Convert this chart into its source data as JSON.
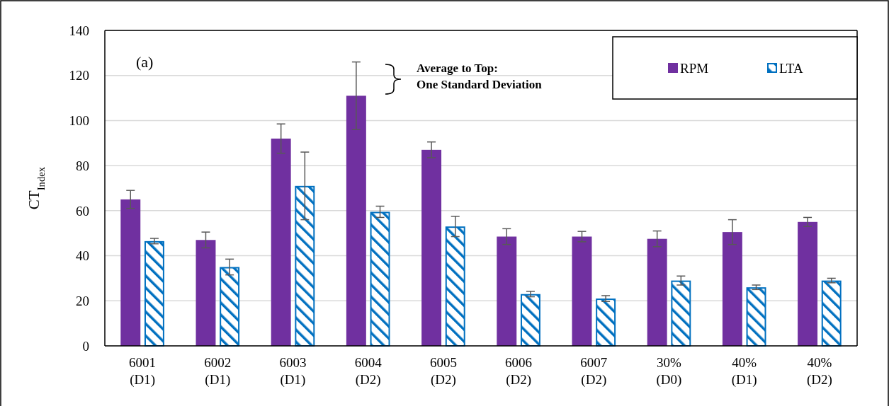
{
  "chart_data": {
    "type": "bar",
    "ylabel": "CT$_{Index}$",
    "categories": [
      "6001\n(D1)",
      "6002\n(D1)",
      "6003\n(D1)",
      "6004\n(D2)",
      "6005\n(D2)",
      "6006\n(D2)",
      "6007\n(D2)",
      "30%\n(D0)",
      "40%\n(D1)",
      "40%\n(D2)"
    ],
    "series": [
      {
        "name": "RPM",
        "color": "#7030a0",
        "values": [
          65,
          47,
          92,
          111,
          87,
          48.5,
          48.5,
          47.5,
          50.5,
          55
        ],
        "errors": [
          4,
          3.5,
          6.5,
          15,
          3.5,
          3.5,
          2.3,
          3.5,
          5.5,
          2
        ]
      },
      {
        "name": "LTA",
        "color": "#0070c0",
        "values": [
          46.5,
          35,
          71,
          59.5,
          53,
          23,
          21,
          29,
          26,
          29
        ],
        "errors": [
          1.2,
          3.5,
          15,
          2.5,
          4.5,
          1.2,
          1.3,
          2,
          1,
          1
        ]
      }
    ],
    "ylim": [
      0,
      140
    ],
    "yticks": [
      0,
      20,
      40,
      60,
      80,
      100,
      120,
      140
    ],
    "grid": "y",
    "legend": "top right",
    "annotations": [
      "(a)",
      "Average to Top:\nOne Standard Deviation"
    ]
  }
}
